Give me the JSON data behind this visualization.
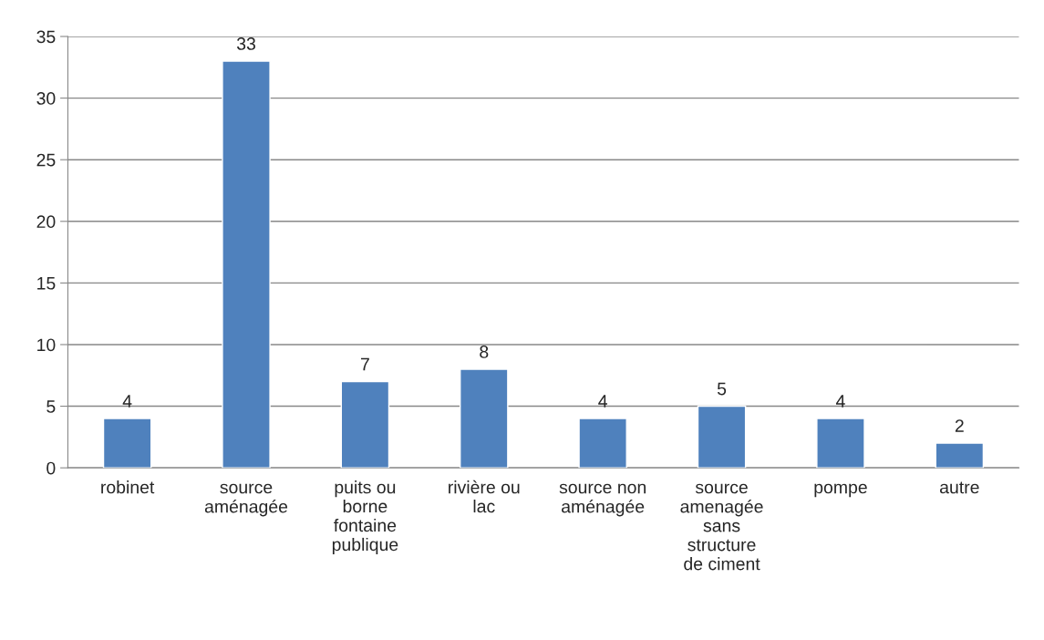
{
  "chart_data": {
    "type": "bar",
    "categories": [
      "robinet",
      "source\naménagée",
      "puits ou\nborne\nfontaine\npublique",
      "rivière ou\nlac",
      "source non\naménagée",
      "source\namenagée\nsans\nstructure\nde ciment",
      "pompe",
      "autre"
    ],
    "values": [
      4,
      33,
      7,
      8,
      4,
      5,
      4,
      2
    ],
    "color": "#4f81bd",
    "ylim": [
      0,
      35
    ],
    "yticks": [
      0,
      5,
      10,
      15,
      20,
      25,
      30,
      35
    ],
    "grid": "y",
    "data_labels": true
  }
}
